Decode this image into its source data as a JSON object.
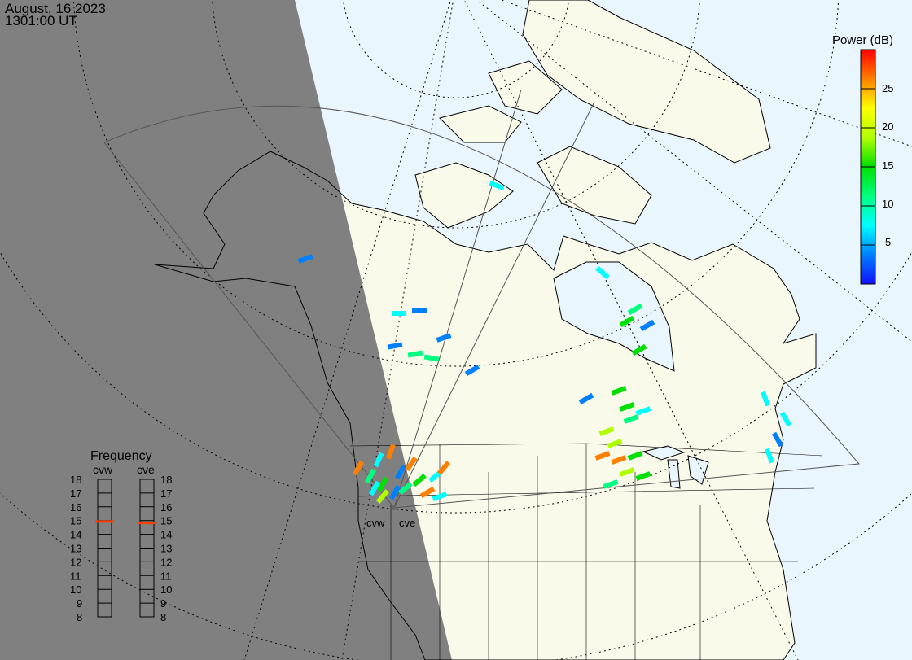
{
  "header": {
    "date": "August, 16 2023",
    "time": "1301:00 UT"
  },
  "colorbar": {
    "title": "Power (dB)",
    "range": [
      0,
      30
    ],
    "ticks": [
      "25",
      "20",
      "15",
      "10",
      "5"
    ],
    "tick_values": [
      25,
      20,
      15,
      10,
      5
    ],
    "colors": [
      "#1010ff",
      "#0080ff",
      "#00ffff",
      "#00ff80",
      "#00e000",
      "#b0ff00",
      "#ffff00",
      "#ff8000",
      "#ff0000"
    ]
  },
  "frequency": {
    "title": "Frequency",
    "scale": [
      "18",
      "17",
      "16",
      "15",
      "14",
      "13",
      "12",
      "11",
      "10",
      "9",
      "8"
    ],
    "range_mhz": [
      8,
      18
    ],
    "radars": [
      {
        "name": "cvw",
        "freq_mhz": 14.9
      },
      {
        "name": "cve",
        "freq_mhz": 14.8
      }
    ],
    "marker_color": "#ff4000"
  },
  "map": {
    "radar_labels": [
      "cvw",
      "cve"
    ],
    "ocean_color": "#eaf6fe",
    "land_color": "#fafaeb",
    "night_color": "#808080"
  }
}
